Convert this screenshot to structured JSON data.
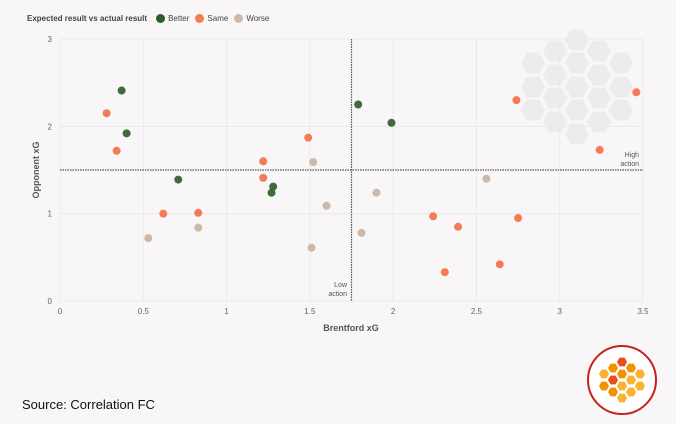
{
  "chart_data": {
    "type": "scatter",
    "title": "",
    "xlabel": "Brentford xG",
    "ylabel": "Opponent xG",
    "xlim": [
      0,
      3.5
    ],
    "ylim": [
      0,
      3
    ],
    "x_ticks": [
      "0",
      "0.5",
      "1",
      "1.5",
      "2",
      "2.5",
      "3",
      "3.5"
    ],
    "y_ticks": [
      "0",
      "1",
      "2",
      "3"
    ],
    "grid": true,
    "legend": {
      "title": "Expected result vs actual result",
      "placement": "top-left"
    },
    "reference_lines": {
      "x": 1.75,
      "y": 1.5
    },
    "annotations": {
      "low": [
        "Low",
        "action"
      ],
      "high": [
        "High",
        "action"
      ]
    },
    "series": [
      {
        "name": "Better",
        "color": "#3f6b3b",
        "points": [
          [
            0.37,
            2.41
          ],
          [
            0.4,
            1.92
          ],
          [
            0.71,
            1.39
          ],
          [
            1.28,
            1.31
          ],
          [
            1.27,
            1.24
          ],
          [
            1.79,
            2.25
          ],
          [
            1.99,
            2.04
          ]
        ]
      },
      {
        "name": "Same",
        "color": "#f47c55",
        "points": [
          [
            0.28,
            2.15
          ],
          [
            0.34,
            1.72
          ],
          [
            0.62,
            1.0
          ],
          [
            0.83,
            1.01
          ],
          [
            1.22,
            1.6
          ],
          [
            1.22,
            1.41
          ],
          [
            1.49,
            1.87
          ],
          [
            2.74,
            2.3
          ],
          [
            3.46,
            2.39
          ],
          [
            3.24,
            1.73
          ],
          [
            2.24,
            0.97
          ],
          [
            2.39,
            0.85
          ],
          [
            2.75,
            0.95
          ],
          [
            2.31,
            0.33
          ],
          [
            2.64,
            0.42
          ]
        ]
      },
      {
        "name": "Worse",
        "color": "#cdb8a9",
        "points": [
          [
            0.53,
            0.72
          ],
          [
            0.83,
            0.84
          ],
          [
            1.52,
            1.59
          ],
          [
            1.6,
            1.09
          ],
          [
            1.51,
            0.61
          ],
          [
            1.9,
            1.24
          ],
          [
            1.81,
            0.78
          ],
          [
            2.56,
            1.4
          ]
        ]
      }
    ]
  },
  "source": "Source: Correlation FC"
}
